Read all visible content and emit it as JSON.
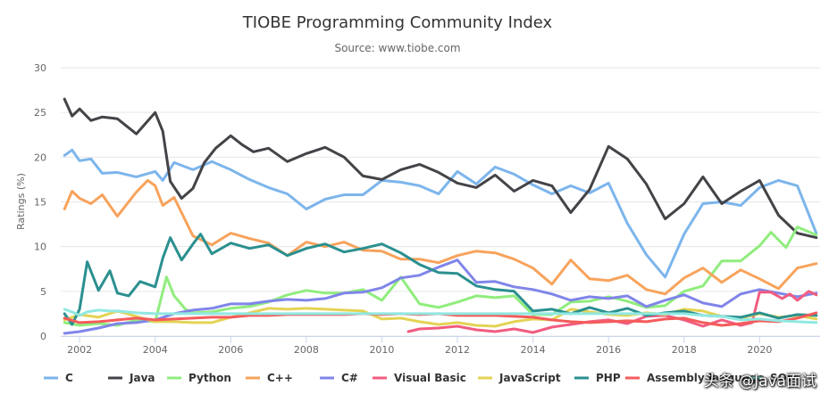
{
  "chart_data": {
    "type": "line",
    "title": "TIOBE Programming Community Index",
    "subtitle": "Source: www.tiobe.com",
    "ylabel": "Ratings (%)",
    "xlabel": "",
    "xlim": [
      2001.5,
      2021.6
    ],
    "ylim": [
      0,
      30
    ],
    "ytick_values": [
      0,
      5,
      10,
      15,
      20,
      25,
      30
    ],
    "ytick_labels": [
      "0",
      "5",
      "10",
      "15",
      "20",
      "25",
      "30"
    ],
    "xtick_values": [
      2002,
      2004,
      2006,
      2008,
      2010,
      2012,
      2014,
      2016,
      2018,
      2020
    ],
    "xtick_labels": [
      "2002",
      "2004",
      "2006",
      "2008",
      "2010",
      "2012",
      "2014",
      "2016",
      "2018",
      "2020"
    ],
    "legend_position": "bottom",
    "series": [
      {
        "name": "C",
        "color": "#7cb5ec",
        "x": [
          2001.6,
          2001.8,
          2002,
          2002.3,
          2002.6,
          2003,
          2003.5,
          2004,
          2004.2,
          2004.5,
          2005,
          2005.5,
          2006,
          2006.5,
          2007,
          2007.5,
          2008,
          2008.5,
          2009,
          2009.5,
          2010,
          2010.5,
          2011,
          2011.5,
          2012,
          2012.5,
          2013,
          2013.5,
          2014,
          2014.5,
          2015,
          2015.5,
          2016,
          2016.5,
          2017,
          2017.5,
          2018,
          2018.5,
          2019,
          2019.5,
          2020,
          2020.5,
          2021,
          2021.5
        ],
        "y": [
          20.2,
          20.8,
          19.6,
          19.8,
          18.2,
          18.3,
          17.8,
          18.4,
          17.4,
          19.4,
          18.6,
          19.5,
          18.6,
          17.5,
          16.6,
          15.9,
          14.2,
          15.3,
          15.8,
          15.8,
          17.4,
          17.2,
          16.8,
          15.9,
          18.4,
          17.0,
          18.9,
          18.1,
          16.9,
          15.9,
          16.8,
          16.0,
          17.1,
          12.6,
          9.1,
          6.6,
          11.4,
          14.8,
          15.0,
          14.6,
          16.6,
          17.4,
          16.8,
          11.5
        ]
      },
      {
        "name": "Java",
        "color": "#434348",
        "x": [
          2001.6,
          2001.8,
          2002,
          2002.3,
          2002.6,
          2003,
          2003.5,
          2004,
          2004.2,
          2004.4,
          2004.7,
          2005,
          2005.3,
          2005.6,
          2006,
          2006.3,
          2006.6,
          2007,
          2007.5,
          2008,
          2008.5,
          2009,
          2009.5,
          2010,
          2010.5,
          2011,
          2011.5,
          2012,
          2012.5,
          2013,
          2013.5,
          2014,
          2014.5,
          2015,
          2015.5,
          2016,
          2016.5,
          2017,
          2017.5,
          2018,
          2018.5,
          2019,
          2019.5,
          2020,
          2020.5,
          2021,
          2021.5
        ],
        "y": [
          26.5,
          24.6,
          25.4,
          24.1,
          24.5,
          24.3,
          22.6,
          25.0,
          22.9,
          17.3,
          15.4,
          16.5,
          19.4,
          21.0,
          22.4,
          21.4,
          20.6,
          21.0,
          19.5,
          20.4,
          21.1,
          20.0,
          17.9,
          17.5,
          18.6,
          19.2,
          18.3,
          17.1,
          16.6,
          18.0,
          16.2,
          17.4,
          16.8,
          13.8,
          16.4,
          21.2,
          19.8,
          17.0,
          13.1,
          14.8,
          17.8,
          14.8,
          16.2,
          17.4,
          13.5,
          11.5,
          11.0
        ]
      },
      {
        "name": "Python",
        "color": "#90ed7d",
        "x": [
          2001.6,
          2002,
          2002.5,
          2003,
          2003.5,
          2004,
          2004.3,
          2004.5,
          2004.8,
          2005,
          2005.5,
          2006,
          2006.5,
          2007,
          2007.5,
          2008,
          2008.5,
          2009,
          2009.5,
          2010,
          2010.5,
          2011,
          2011.5,
          2012,
          2012.5,
          2013,
          2013.5,
          2014,
          2014.5,
          2015,
          2015.5,
          2016,
          2016.5,
          2017,
          2017.5,
          2018,
          2018.5,
          2019,
          2019.5,
          2020,
          2020.3,
          2020.7,
          2021,
          2021.5
        ],
        "y": [
          1.5,
          1.2,
          1.4,
          1.2,
          1.8,
          1.6,
          6.6,
          4.5,
          3.0,
          2.6,
          2.7,
          3.1,
          3.3,
          3.8,
          4.6,
          5.1,
          4.8,
          4.8,
          5.2,
          4.0,
          6.6,
          3.6,
          3.2,
          3.8,
          4.5,
          4.3,
          4.5,
          2.4,
          2.4,
          3.8,
          3.9,
          4.4,
          3.9,
          3.2,
          3.4,
          5.0,
          5.6,
          8.4,
          8.4,
          10.1,
          11.6,
          9.9,
          12.2,
          11.3
        ]
      },
      {
        "name": "C++",
        "color": "#f7a35c",
        "x": [
          2001.6,
          2001.8,
          2002,
          2002.3,
          2002.6,
          2003,
          2003.5,
          2003.8,
          2004,
          2004.2,
          2004.5,
          2005,
          2005.5,
          2006,
          2006.5,
          2007,
          2007.5,
          2008,
          2008.5,
          2009,
          2009.5,
          2010,
          2010.5,
          2011,
          2011.5,
          2012,
          2012.5,
          2013,
          2013.5,
          2014,
          2014.5,
          2015,
          2015.5,
          2016,
          2016.5,
          2017,
          2017.5,
          2018,
          2018.5,
          2019,
          2019.5,
          2020,
          2020.5,
          2021,
          2021.5
        ],
        "y": [
          14.2,
          16.2,
          15.4,
          14.8,
          15.8,
          13.4,
          16.1,
          17.4,
          16.8,
          14.6,
          15.5,
          11.2,
          10.2,
          11.5,
          10.9,
          10.4,
          9.0,
          10.5,
          10.0,
          10.5,
          9.6,
          9.5,
          8.6,
          8.6,
          8.2,
          9.0,
          9.5,
          9.3,
          8.6,
          7.6,
          5.8,
          8.5,
          6.4,
          6.2,
          6.8,
          5.2,
          4.7,
          6.5,
          7.6,
          6.0,
          7.4,
          6.4,
          5.3,
          7.6,
          8.1
        ]
      },
      {
        "name": "C#",
        "color": "#8085e9",
        "x": [
          2001.6,
          2002,
          2002.5,
          2003,
          2003.5,
          2004,
          2004.5,
          2005,
          2005.5,
          2006,
          2006.5,
          2007,
          2007.5,
          2008,
          2008.5,
          2009,
          2009.5,
          2010,
          2010.5,
          2011,
          2011.5,
          2012,
          2012.5,
          2013,
          2013.5,
          2014,
          2014.5,
          2015,
          2015.5,
          2016,
          2016.5,
          2017,
          2017.5,
          2018,
          2018.5,
          2019,
          2019.5,
          2020,
          2020.5,
          2021,
          2021.5
        ],
        "y": [
          0.3,
          0.5,
          0.9,
          1.4,
          1.5,
          1.8,
          2.5,
          2.9,
          3.1,
          3.6,
          3.6,
          3.9,
          4.1,
          4.0,
          4.2,
          4.8,
          4.9,
          5.4,
          6.5,
          6.8,
          7.7,
          8.5,
          6.0,
          6.1,
          5.5,
          5.2,
          4.7,
          4.0,
          4.4,
          4.2,
          4.5,
          3.3,
          4.0,
          4.6,
          3.7,
          3.3,
          4.7,
          5.2,
          4.8,
          4.4,
          4.8
        ]
      },
      {
        "name": "Visual Basic",
        "color": "#f15c80",
        "x": [
          2010.7,
          2011,
          2011.5,
          2012,
          2012.5,
          2013,
          2013.5,
          2014,
          2014.5,
          2015,
          2015.5,
          2016,
          2016.5,
          2017,
          2017.5,
          2018,
          2018.5,
          2019,
          2019.5,
          2019.8,
          2020,
          2020.3,
          2020.6,
          2020.8,
          2021,
          2021.3,
          2021.5
        ],
        "y": [
          0.5,
          0.8,
          0.9,
          1.1,
          0.7,
          0.5,
          0.8,
          0.4,
          1.0,
          1.3,
          1.6,
          1.8,
          1.4,
          2.2,
          2.3,
          1.8,
          1.1,
          1.8,
          1.2,
          1.5,
          4.9,
          4.9,
          4.2,
          4.7,
          4.0,
          5.0,
          4.6
        ]
      },
      {
        "name": "JavaScript",
        "color": "#e4d354",
        "x": [
          2001.6,
          2002,
          2002.5,
          2003,
          2003.5,
          2004,
          2004.5,
          2005,
          2005.5,
          2006,
          2006.5,
          2007,
          2007.5,
          2008,
          2008.5,
          2009,
          2009.5,
          2010,
          2010.5,
          2011,
          2011.5,
          2012,
          2012.5,
          2013,
          2013.5,
          2014,
          2014.5,
          2015,
          2015.5,
          2016,
          2016.5,
          2017,
          2017.5,
          2018,
          2018.5,
          2019,
          2019.5,
          2020,
          2020.5,
          2021,
          2021.5
        ],
        "y": [
          1.8,
          2.4,
          2.1,
          2.8,
          2.2,
          1.6,
          1.6,
          1.5,
          1.5,
          2.1,
          2.6,
          3.1,
          3.0,
          3.1,
          3.0,
          2.9,
          2.8,
          1.9,
          2.0,
          1.6,
          1.3,
          1.5,
          1.2,
          1.1,
          1.6,
          1.9,
          1.8,
          3.0,
          2.7,
          2.4,
          2.3,
          2.6,
          2.4,
          3.0,
          2.8,
          2.2,
          2.0,
          2.5,
          2.1,
          2.3,
          1.9
        ]
      },
      {
        "name": "PHP",
        "color": "#2b908f",
        "x": [
          2001.6,
          2001.8,
          2002,
          2002.2,
          2002.5,
          2002.8,
          2003,
          2003.3,
          2003.6,
          2004,
          2004.2,
          2004.4,
          2004.7,
          2005,
          2005.2,
          2005.5,
          2006,
          2006.5,
          2007,
          2007.5,
          2008,
          2008.5,
          2009,
          2009.5,
          2010,
          2010.5,
          2011,
          2011.5,
          2012,
          2012.5,
          2013,
          2013.5,
          2014,
          2014.5,
          2015,
          2015.5,
          2016,
          2016.5,
          2017,
          2017.5,
          2018,
          2018.5,
          2019,
          2019.5,
          2020,
          2020.5,
          2021,
          2021.5
        ],
        "y": [
          2.5,
          1.3,
          3.0,
          8.3,
          5.1,
          7.3,
          4.8,
          4.5,
          6.1,
          5.5,
          8.7,
          11.0,
          8.5,
          10.3,
          11.4,
          9.2,
          10.4,
          9.8,
          10.2,
          9.0,
          9.8,
          10.3,
          9.4,
          9.8,
          10.3,
          9.3,
          8.0,
          7.1,
          7.0,
          5.6,
          5.2,
          5.0,
          2.8,
          3.0,
          2.5,
          3.2,
          2.6,
          3.1,
          2.3,
          2.6,
          2.8,
          2.3,
          2.2,
          2.1,
          2.6,
          2.0,
          2.4,
          2.3
        ]
      },
      {
        "name": "Assembly language",
        "color": "#f45b5b",
        "x": [
          2001.6,
          2002,
          2002.5,
          2003,
          2003.5,
          2004,
          2004.5,
          2005,
          2005.5,
          2006,
          2006.5,
          2007,
          2007.5,
          2008,
          2008.5,
          2009,
          2009.5,
          2010,
          2010.5,
          2011,
          2011.5,
          2012,
          2012.5,
          2013,
          2013.5,
          2014,
          2014.5,
          2015,
          2015.5,
          2016,
          2016.5,
          2017,
          2017.5,
          2018,
          2018.5,
          2019,
          2019.5,
          2020,
          2020.5,
          2021,
          2021.5
        ],
        "y": [
          2.0,
          1.5,
          1.6,
          1.8,
          2.0,
          1.8,
          1.9,
          2.0,
          2.1,
          2.1,
          2.3,
          2.3,
          2.4,
          2.4,
          2.4,
          2.4,
          2.5,
          2.4,
          2.5,
          2.4,
          2.5,
          2.3,
          2.3,
          2.3,
          2.2,
          2.1,
          1.8,
          1.6,
          1.5,
          1.6,
          1.7,
          1.6,
          1.9,
          2.0,
          1.5,
          1.2,
          1.4,
          1.7,
          1.6,
          2.0,
          2.6
        ]
      },
      {
        "name": "SQL",
        "color": "#91e8e1",
        "x": [
          2001.6,
          2001.8,
          2002,
          2002.2,
          2002.5,
          2002.8,
          2003,
          2003.5,
          2004,
          2004.5,
          2005,
          2006,
          2007,
          2008,
          2009,
          2010,
          2011,
          2012,
          2013,
          2014,
          2015,
          2016,
          2017,
          2018,
          2018.5,
          2019,
          2019.5,
          2020,
          2020.5,
          2021,
          2021.5
        ],
        "y": [
          3.0,
          2.7,
          2.3,
          2.7,
          2.9,
          2.8,
          2.8,
          2.6,
          2.5,
          2.5,
          2.5,
          2.5,
          2.5,
          2.5,
          2.5,
          2.5,
          2.5,
          2.5,
          2.5,
          2.5,
          2.5,
          2.5,
          2.5,
          2.5,
          2.3,
          2.2,
          1.8,
          1.9,
          1.7,
          1.6,
          1.5
        ]
      }
    ],
    "legend_labels": [
      "C",
      "Java",
      "Python",
      "C++",
      "C#",
      "Visual Basic",
      "JavaScript",
      "PHP",
      "Assembly language",
      "SQL"
    ]
  },
  "watermark": "头条 @Java面试"
}
